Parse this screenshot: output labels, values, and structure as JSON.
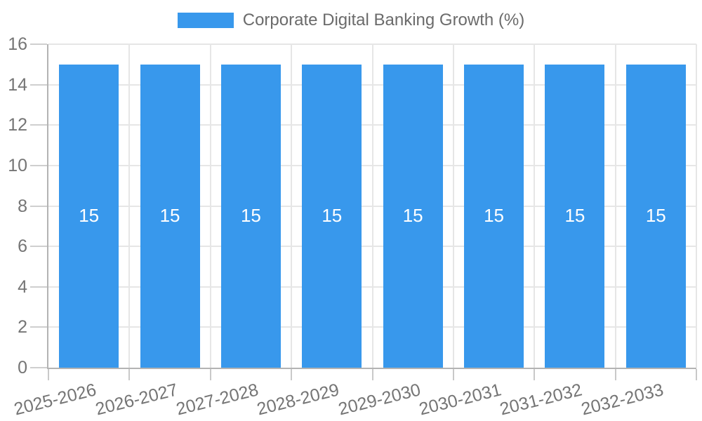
{
  "legend": {
    "position": "top",
    "items": [
      {
        "label": "Corporate Digital Banking Growth (%)",
        "color": "#3898EC"
      }
    ]
  },
  "chart_data": {
    "type": "bar",
    "title": "Corporate Digital Banking Growth (%)",
    "categories": [
      "2025-2026",
      "2026-2027",
      "2027-2028",
      "2028-2029",
      "2029-2030",
      "2030-2031",
      "2031-2032",
      "2032-2033"
    ],
    "series": [
      {
        "name": "Corporate Digital Banking Growth (%)",
        "color": "#3898EC",
        "values": [
          15,
          15,
          15,
          15,
          15,
          15,
          15,
          15
        ]
      }
    ],
    "bar_value_labels": [
      "15",
      "15",
      "15",
      "15",
      "15",
      "15",
      "15",
      "15"
    ],
    "xlabel": "",
    "ylabel": "",
    "ylim": [
      0,
      16
    ],
    "ytick_step": 2,
    "yticks": [
      0,
      2,
      4,
      6,
      8,
      10,
      12,
      14,
      16
    ],
    "grid": true,
    "legend_position": "top",
    "xtick_rotation_deg": -14,
    "colors": {
      "bar": "#3898EC",
      "grid": "#e6e6e6",
      "axis_line": "#b3b3b3",
      "tick_mark_y": "#cfcfcf",
      "tick_mark_x": "#c9c9c9",
      "tick_label": "#757575",
      "legend_text": "#6b6b6b",
      "bar_label_text": "#ffffff",
      "background": "#ffffff"
    }
  }
}
